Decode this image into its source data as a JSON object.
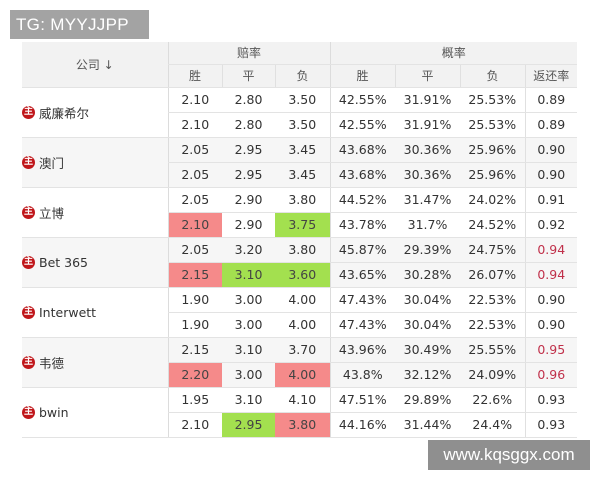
{
  "watermark_top": "TG: MYYJJPP",
  "watermark_bottom": "www.kqsggx.com",
  "colors": {
    "up_highlight": "#f58a8a",
    "down_highlight": "#a3e04f",
    "high_return_text": "#c0304a",
    "home_badge": "#c0171b"
  },
  "header": {
    "company": "公司 ↓",
    "odds_group": "赔率",
    "prob_group": "概率",
    "win": "胜",
    "draw": "平",
    "lose": "负",
    "return_rate": "返还率"
  },
  "badge_label": "主",
  "companies": [
    {
      "name": "威廉希尔",
      "rows": [
        {
          "win": "2.10",
          "draw": "2.80",
          "lose": "3.50",
          "p_win": "42.55%",
          "p_draw": "31.91%",
          "p_lose": "25.53%",
          "ret": "0.89"
        },
        {
          "win": "2.10",
          "draw": "2.80",
          "lose": "3.50",
          "p_win": "42.55%",
          "p_draw": "31.91%",
          "p_lose": "25.53%",
          "ret": "0.89"
        }
      ]
    },
    {
      "name": "澳门",
      "rows": [
        {
          "win": "2.05",
          "draw": "2.95",
          "lose": "3.45",
          "p_win": "43.68%",
          "p_draw": "30.36%",
          "p_lose": "25.96%",
          "ret": "0.90"
        },
        {
          "win": "2.05",
          "draw": "2.95",
          "lose": "3.45",
          "p_win": "43.68%",
          "p_draw": "30.36%",
          "p_lose": "25.96%",
          "ret": "0.90"
        }
      ]
    },
    {
      "name": "立博",
      "rows": [
        {
          "win": "2.05",
          "draw": "2.90",
          "lose": "3.80",
          "p_win": "44.52%",
          "p_draw": "31.47%",
          "p_lose": "24.02%",
          "ret": "0.91"
        },
        {
          "win": "2.10",
          "draw": "2.90",
          "lose": "3.75",
          "p_win": "43.78%",
          "p_draw": "31.7%",
          "p_lose": "24.52%",
          "ret": "0.92",
          "win_hl": "red",
          "lose_hl": "green"
        }
      ]
    },
    {
      "name": "Bet 365",
      "rows": [
        {
          "win": "2.05",
          "draw": "3.20",
          "lose": "3.80",
          "p_win": "45.87%",
          "p_draw": "29.39%",
          "p_lose": "24.75%",
          "ret": "0.94",
          "ret_hl": true
        },
        {
          "win": "2.15",
          "draw": "3.10",
          "lose": "3.60",
          "p_win": "43.65%",
          "p_draw": "30.28%",
          "p_lose": "26.07%",
          "ret": "0.94",
          "win_hl": "red",
          "draw_hl": "green",
          "lose_hl": "green",
          "ret_hl": true
        }
      ]
    },
    {
      "name": "Interwett",
      "rows": [
        {
          "win": "1.90",
          "draw": "3.00",
          "lose": "4.00",
          "p_win": "47.43%",
          "p_draw": "30.04%",
          "p_lose": "22.53%",
          "ret": "0.90"
        },
        {
          "win": "1.90",
          "draw": "3.00",
          "lose": "4.00",
          "p_win": "47.43%",
          "p_draw": "30.04%",
          "p_lose": "22.53%",
          "ret": "0.90"
        }
      ]
    },
    {
      "name": "韦德",
      "rows": [
        {
          "win": "2.15",
          "draw": "3.10",
          "lose": "3.70",
          "p_win": "43.96%",
          "p_draw": "30.49%",
          "p_lose": "25.55%",
          "ret": "0.95",
          "ret_hl": true
        },
        {
          "win": "2.20",
          "draw": "3.00",
          "lose": "4.00",
          "p_win": "43.8%",
          "p_draw": "32.12%",
          "p_lose": "24.09%",
          "ret": "0.96",
          "win_hl": "red",
          "lose_hl": "red",
          "ret_hl": true
        }
      ]
    },
    {
      "name": "bwin",
      "rows": [
        {
          "win": "1.95",
          "draw": "3.10",
          "lose": "4.10",
          "p_win": "47.51%",
          "p_draw": "29.89%",
          "p_lose": "22.6%",
          "ret": "0.93"
        },
        {
          "win": "2.10",
          "draw": "2.95",
          "lose": "3.80",
          "p_win": "44.16%",
          "p_draw": "31.44%",
          "p_lose": "24.4%",
          "ret": "0.93",
          "draw_hl": "green",
          "lose_hl": "red"
        }
      ]
    }
  ]
}
